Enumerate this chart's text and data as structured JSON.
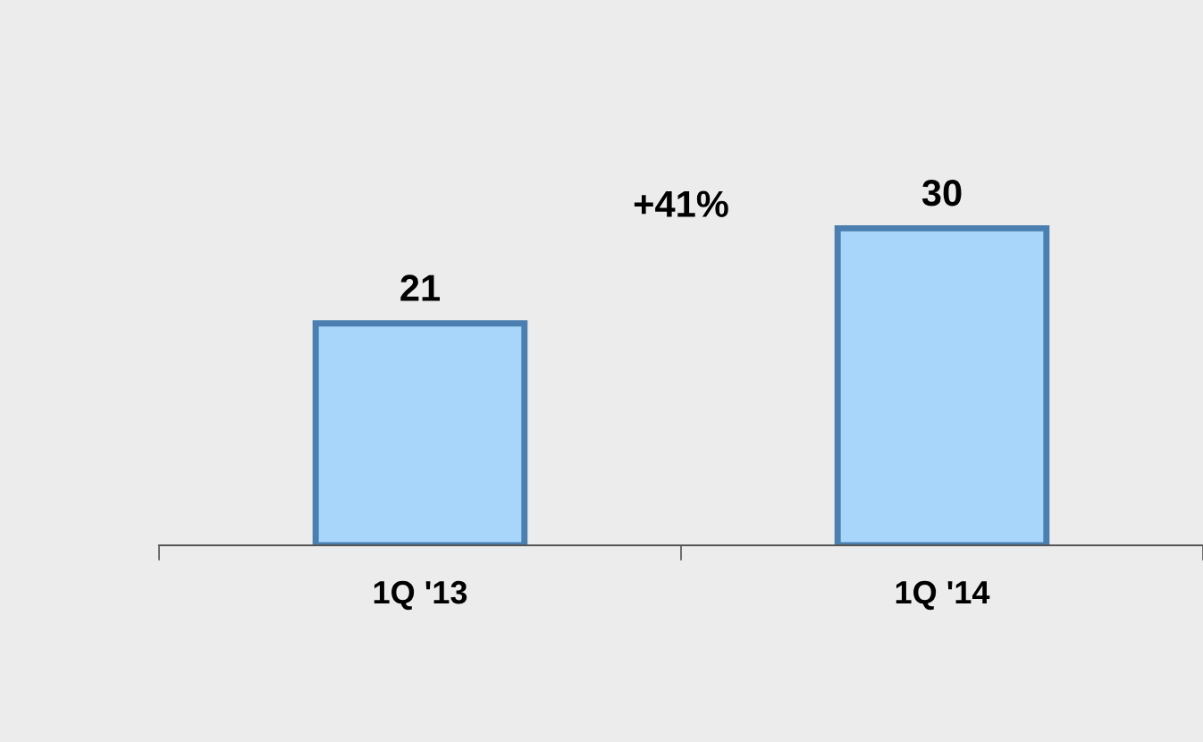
{
  "chart_data": {
    "type": "bar",
    "categories": [
      "1Q '13",
      "1Q '14"
    ],
    "values": [
      21,
      30
    ],
    "color": "#a8d6fa",
    "data_labels": true,
    "annotations": [
      "+41%"
    ],
    "grid": false,
    "legend": false
  }
}
